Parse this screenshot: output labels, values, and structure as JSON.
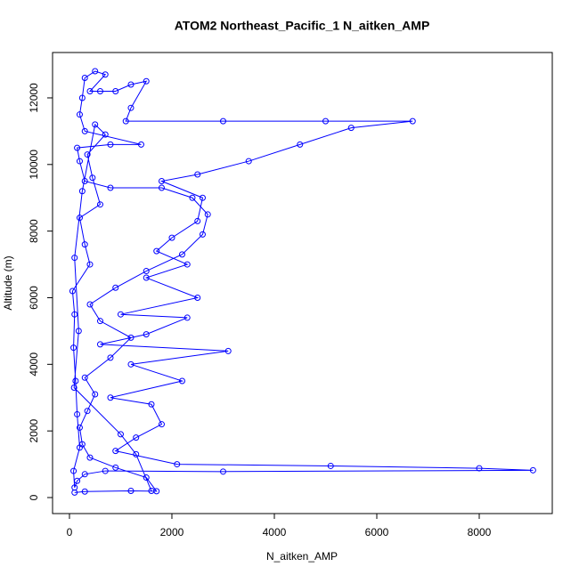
{
  "chart_data": {
    "type": "line",
    "title": "ATOM2 Northeast_Pacific_1 N_aitken_AMP",
    "x_label": "N_aitken_AMP",
    "y_label": "Altitude (m)",
    "x": [
      100,
      300,
      1200,
      1700,
      1500,
      900,
      400,
      250,
      200,
      350,
      500,
      300,
      800,
      1200,
      600,
      400,
      900,
      1500,
      2200,
      2600,
      2700,
      2400,
      1800,
      800,
      300,
      200,
      150,
      800,
      1400,
      300,
      200,
      250,
      300,
      500,
      700,
      400,
      600,
      900,
      1200,
      1500,
      1200,
      1100,
      3000,
      5000,
      6700,
      5500,
      4500,
      3500,
      2500,
      1800,
      2600,
      2500,
      2000,
      1700,
      2300,
      1500,
      2500,
      1000,
      2300,
      1500,
      600,
      3100,
      1200,
      2200,
      800,
      1600,
      1800,
      1300,
      900,
      2100,
      5100,
      8000,
      9050,
      3000,
      700,
      300,
      150,
      100,
      80,
      200,
      150,
      120,
      80,
      100,
      60,
      400,
      300,
      200,
      600,
      450,
      350,
      700,
      500,
      250,
      100,
      180,
      90,
      1000,
      1300,
      1600
    ],
    "series": [
      {
        "color": "#0000ff",
        "values": [
          150,
          180,
          200,
          190,
          600,
          900,
          1200,
          1600,
          2100,
          2600,
          3100,
          3600,
          4200,
          4800,
          5300,
          5800,
          6300,
          6800,
          7300,
          7900,
          8500,
          9000,
          9300,
          9300,
          9500,
          10100,
          10500,
          10600,
          10600,
          11000,
          11500,
          12000,
          12600,
          12800,
          12700,
          12200,
          12200,
          12200,
          12400,
          12500,
          11700,
          11300,
          11300,
          11300,
          11300,
          11100,
          10600,
          10100,
          9700,
          9500,
          9000,
          8300,
          7800,
          7400,
          7000,
          6600,
          6000,
          5500,
          5400,
          4900,
          4600,
          4400,
          4000,
          3500,
          3000,
          2800,
          2200,
          1800,
          1400,
          1000,
          950,
          880,
          820,
          780,
          800,
          700,
          500,
          300,
          800,
          1500,
          2500,
          3500,
          4500,
          5500,
          6200,
          7000,
          7600,
          8400,
          8800,
          9600,
          10300,
          10900,
          11200,
          9200,
          7200,
          5000,
          3300,
          1900,
          1300,
          200
        ]
      }
    ],
    "xlim": [
      -330,
      9426
    ],
    "ylim": [
      -481,
      13362
    ],
    "xticks": [
      0,
      2000,
      4000,
      6000,
      8000
    ],
    "yticks": [
      0,
      2000,
      4000,
      6000,
      8000,
      10000,
      12000
    ]
  }
}
